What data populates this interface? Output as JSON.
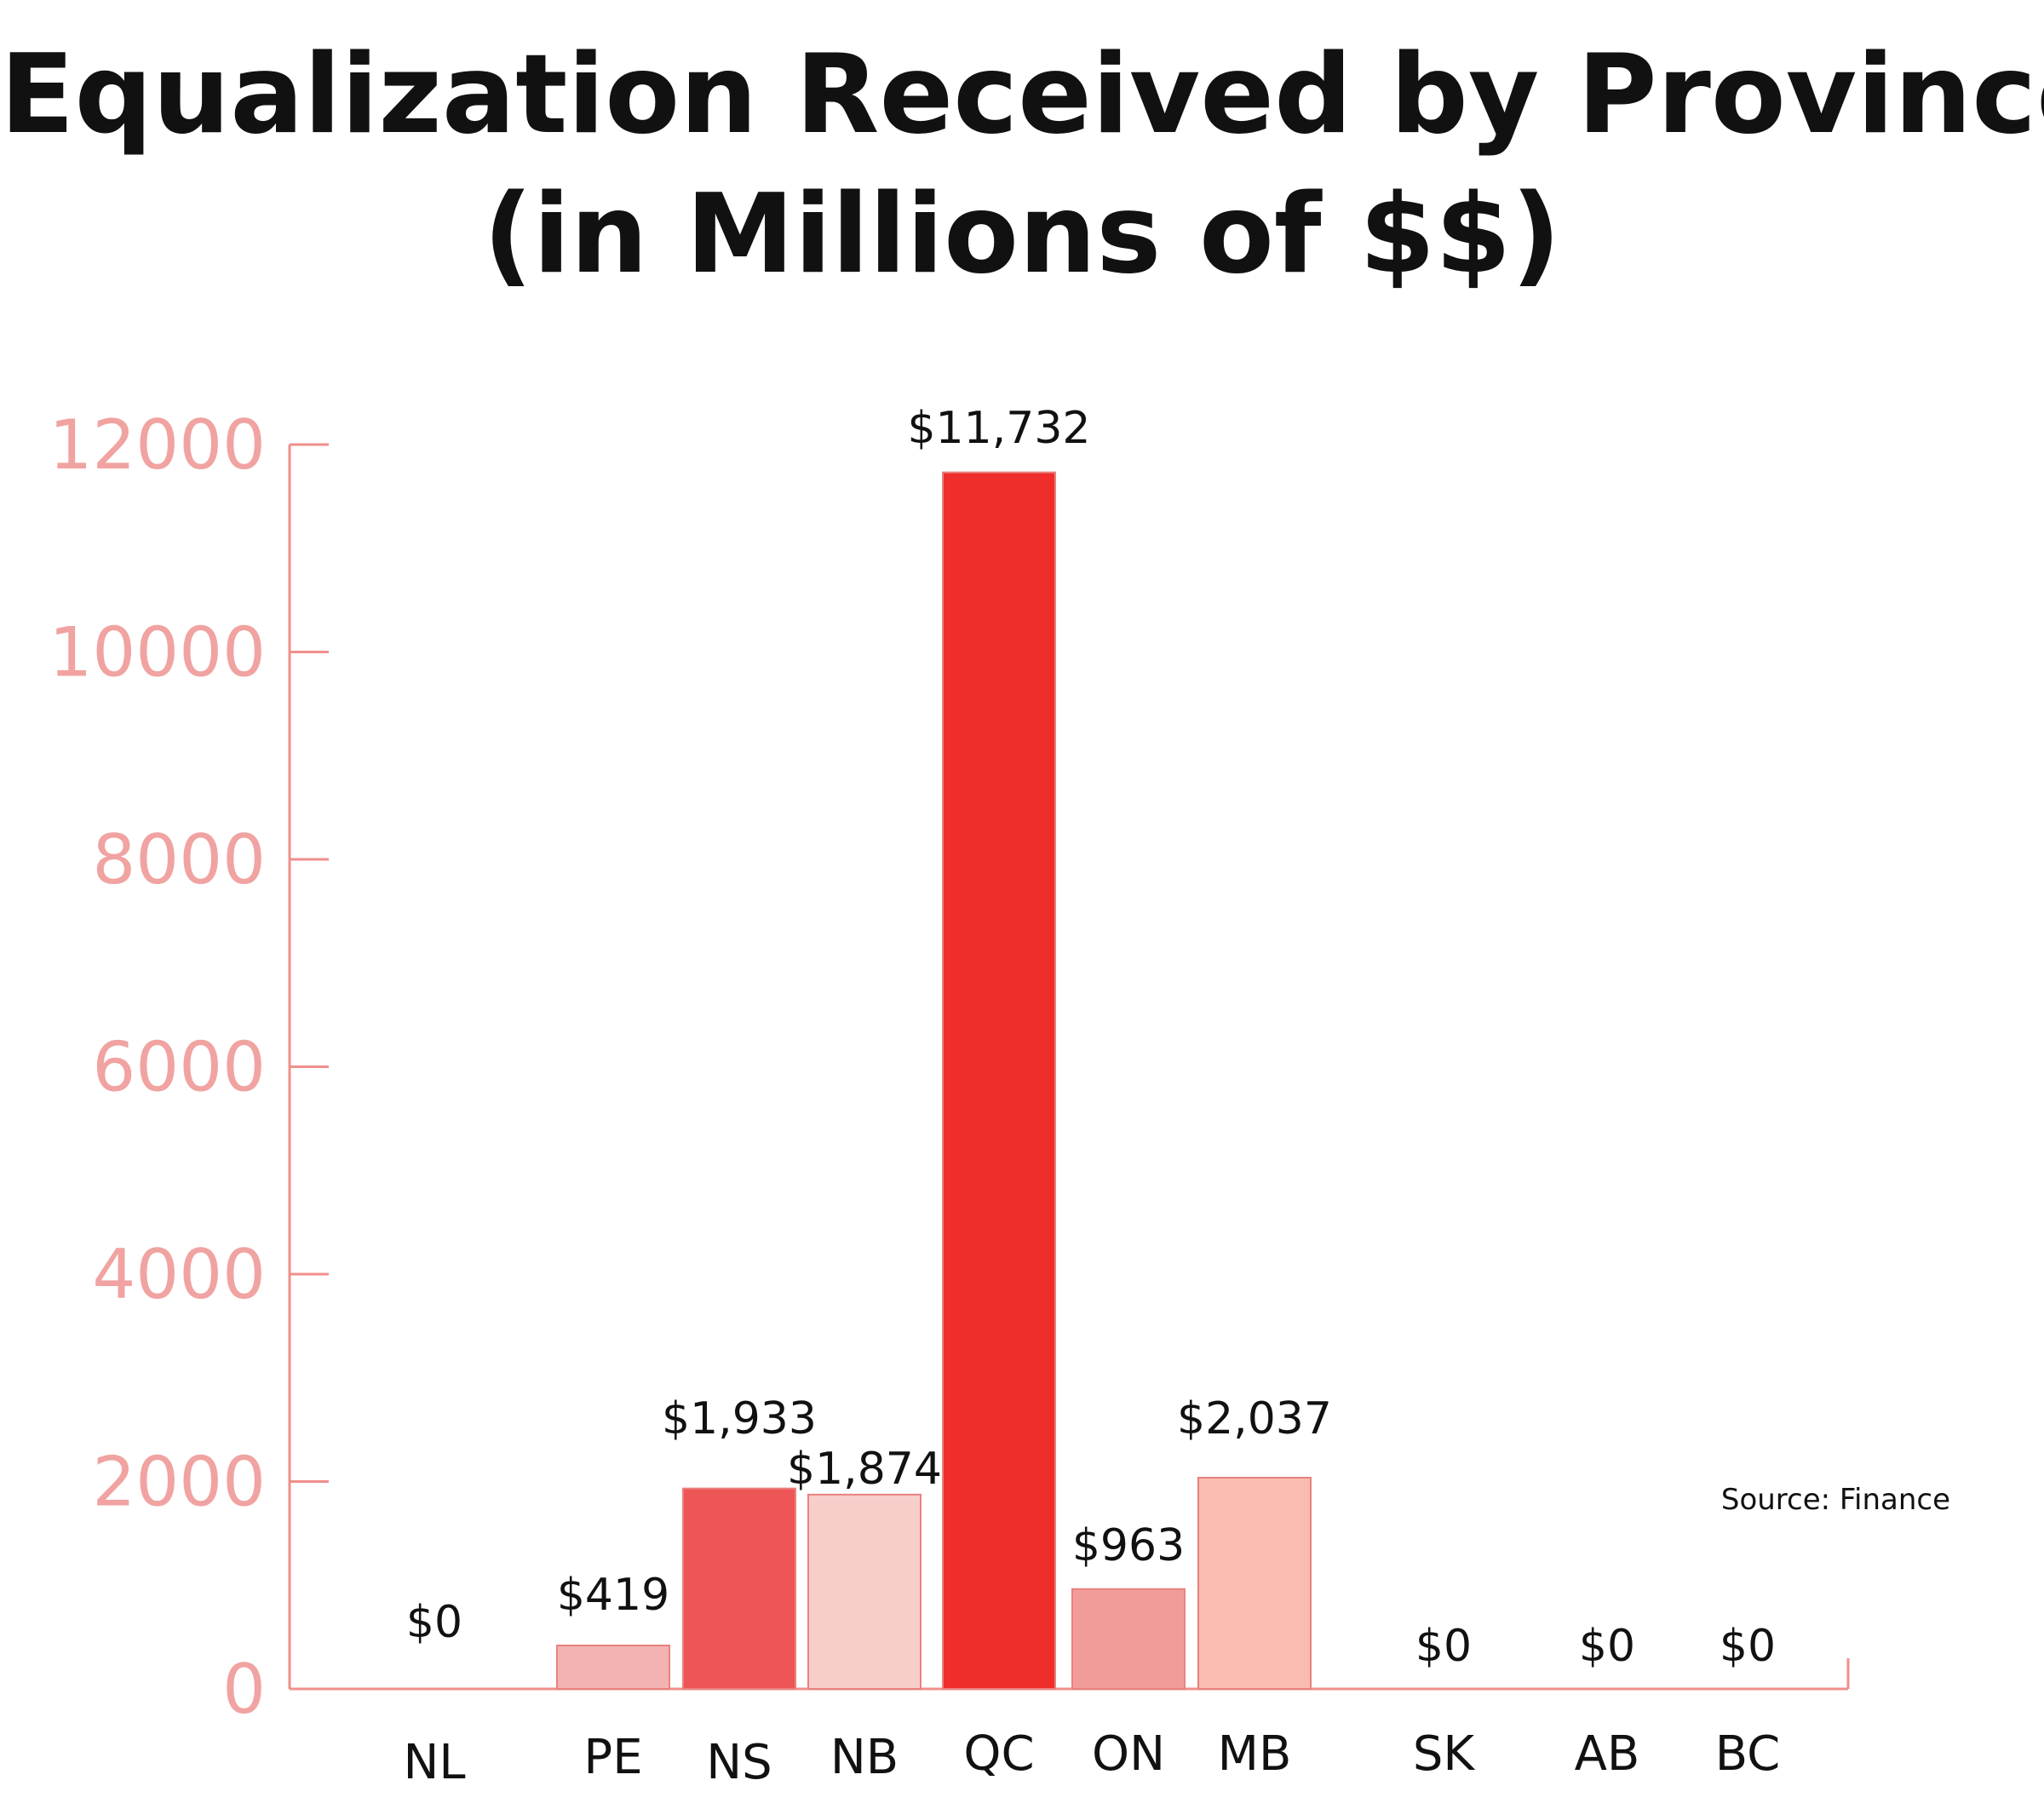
{
  "chart_data": {
    "type": "bar",
    "title": "Equalization Received by Province",
    "subtitle": "(in Millions of $$)",
    "categories": [
      "NL",
      "PE",
      "NS",
      "NB",
      "QC",
      "ON",
      "MB",
      "SK",
      "AB",
      "BC"
    ],
    "values": [
      0,
      419,
      1933,
      1874,
      11732,
      963,
      2037,
      0,
      0,
      0
    ],
    "data_labels": [
      "$0",
      "$419",
      "$1,933",
      "$1,874",
      "$11,732",
      "$963",
      "$2,037",
      "$0",
      "$0",
      "$0"
    ],
    "bar_colors": [
      "#f2b3b2",
      "#f2b3b2",
      "#ee5556",
      "#f8cecb",
      "#ef2e2b",
      "#f29c9a",
      "#f9bcae",
      "#f2b3b2",
      "#f2b3b2",
      "#f2b3b2"
    ],
    "yticks": [
      0,
      2000,
      4000,
      6000,
      8000,
      10000,
      12000
    ],
    "ylim": [
      0,
      12000
    ],
    "axis_color": "#f08f8c",
    "tick_label_color": "#f0a3a1",
    "grid": false,
    "legend": "none",
    "source": "Source: Finance"
  }
}
